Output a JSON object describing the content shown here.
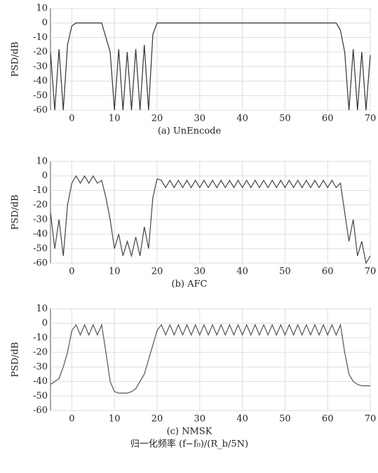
{
  "chart_data": [
    {
      "type": "line",
      "title": "(a) UnEncode",
      "ylabel": "PSD/dB",
      "color": "#333333",
      "grid": true,
      "xlim": [
        -5,
        70
      ],
      "ylim": [
        -60,
        10
      ],
      "xticks": [
        0,
        10,
        20,
        30,
        40,
        50,
        60,
        70
      ],
      "yticks": [
        10,
        0,
        -10,
        -20,
        -30,
        -40,
        -50,
        -60
      ],
      "x": [
        -5,
        -4,
        -3,
        -2,
        -1,
        0,
        1,
        2,
        3,
        4,
        5,
        6,
        7,
        8,
        9,
        10,
        11,
        12,
        13,
        14,
        15,
        16,
        17,
        18,
        19,
        20,
        21,
        22,
        23,
        24,
        25,
        26,
        27,
        28,
        29,
        30,
        31,
        32,
        33,
        34,
        35,
        36,
        37,
        38,
        39,
        40,
        41,
        42,
        43,
        44,
        45,
        46,
        47,
        48,
        49,
        50,
        51,
        52,
        53,
        54,
        55,
        56,
        57,
        58,
        59,
        60,
        61,
        62,
        63,
        64,
        65,
        66,
        67,
        68,
        69,
        70
      ],
      "values": [
        -20,
        -60,
        -18,
        -60,
        -15,
        -2,
        0,
        0,
        0,
        0,
        0,
        0,
        0,
        -10,
        -20,
        -60,
        -18,
        -60,
        -20,
        -60,
        -18,
        -60,
        -15,
        -60,
        -8,
        0,
        0,
        0,
        0,
        0,
        0,
        0,
        0,
        0,
        0,
        0,
        0,
        0,
        0,
        0,
        0,
        0,
        0,
        0,
        0,
        0,
        0,
        0,
        0,
        0,
        0,
        0,
        0,
        0,
        0,
        0,
        0,
        0,
        0,
        0,
        0,
        0,
        0,
        0,
        0,
        0,
        0,
        0,
        -5,
        -20,
        -60,
        -18,
        -60,
        -20,
        -60,
        -22
      ]
    },
    {
      "type": "line",
      "title": "(b) AFC",
      "ylabel": "PSD/dB",
      "color": "#444444",
      "grid": true,
      "xlim": [
        -5,
        70
      ],
      "ylim": [
        -60,
        10
      ],
      "xticks": [
        0,
        10,
        20,
        30,
        40,
        50,
        60,
        70
      ],
      "yticks": [
        10,
        0,
        -10,
        -20,
        -30,
        -40,
        -50,
        -60
      ],
      "x": [
        -5,
        -4,
        -3,
        -2,
        -1,
        0,
        1,
        2,
        3,
        4,
        5,
        6,
        7,
        8,
        9,
        10,
        11,
        12,
        13,
        14,
        15,
        16,
        17,
        18,
        19,
        20,
        21,
        22,
        23,
        24,
        25,
        26,
        27,
        28,
        29,
        30,
        31,
        32,
        33,
        34,
        35,
        36,
        37,
        38,
        39,
        40,
        41,
        42,
        43,
        44,
        45,
        46,
        47,
        48,
        49,
        50,
        51,
        52,
        53,
        54,
        55,
        56,
        57,
        58,
        59,
        60,
        61,
        62,
        63,
        64,
        65,
        66,
        67,
        68,
        69,
        70
      ],
      "values": [
        -25,
        -50,
        -30,
        -55,
        -20,
        -5,
        0,
        -5,
        0,
        -5,
        0,
        -5,
        -3,
        -15,
        -30,
        -50,
        -40,
        -55,
        -45,
        -55,
        -42,
        -55,
        -35,
        -50,
        -15,
        -2,
        -3,
        -8,
        -3,
        -8,
        -3,
        -8,
        -3,
        -8,
        -3,
        -8,
        -3,
        -8,
        -3,
        -8,
        -3,
        -8,
        -3,
        -8,
        -3,
        -8,
        -3,
        -8,
        -3,
        -8,
        -3,
        -8,
        -3,
        -8,
        -3,
        -8,
        -3,
        -8,
        -3,
        -8,
        -3,
        -8,
        -3,
        -8,
        -3,
        -8,
        -3,
        -8,
        -5,
        -25,
        -45,
        -30,
        -55,
        -45,
        -60,
        -55
      ]
    },
    {
      "type": "line",
      "title": "(c) NMSK",
      "ylabel": "PSD/dB",
      "xlabel": "归一化频率 (f−f₀)/(R_b/5N)",
      "color": "#555555",
      "grid": true,
      "xlim": [
        -5,
        70
      ],
      "ylim": [
        -60,
        10
      ],
      "xticks": [
        0,
        10,
        20,
        30,
        40,
        50,
        60,
        70
      ],
      "yticks": [
        10,
        0,
        -10,
        -20,
        -30,
        -40,
        -50,
        -60
      ],
      "x": [
        -5,
        -4,
        -3,
        -2,
        -1,
        0,
        1,
        2,
        3,
        4,
        5,
        6,
        7,
        8,
        9,
        10,
        11,
        12,
        13,
        14,
        15,
        16,
        17,
        18,
        19,
        20,
        21,
        22,
        23,
        24,
        25,
        26,
        27,
        28,
        29,
        30,
        31,
        32,
        33,
        34,
        35,
        36,
        37,
        38,
        39,
        40,
        41,
        42,
        43,
        44,
        45,
        46,
        47,
        48,
        49,
        50,
        51,
        52,
        53,
        54,
        55,
        56,
        57,
        58,
        59,
        60,
        61,
        62,
        63,
        64,
        65,
        66,
        67,
        68,
        69,
        70
      ],
      "values": [
        -42,
        -40,
        -38,
        -30,
        -20,
        -5,
        -1,
        -8,
        -1,
        -8,
        -1,
        -8,
        -1,
        -20,
        -40,
        -47,
        -48,
        -48,
        -48,
        -47,
        -45,
        -40,
        -35,
        -25,
        -15,
        -5,
        -1,
        -8,
        -1,
        -8,
        -1,
        -8,
        -1,
        -8,
        -1,
        -8,
        -1,
        -8,
        -1,
        -8,
        -1,
        -8,
        -1,
        -8,
        -1,
        -8,
        -1,
        -8,
        -1,
        -8,
        -1,
        -8,
        -1,
        -8,
        -1,
        -8,
        -1,
        -8,
        -1,
        -8,
        -1,
        -8,
        -1,
        -8,
        -1,
        -8,
        -1,
        -8,
        -1,
        -20,
        -35,
        -40,
        -42,
        -43,
        -43,
        -43
      ]
    }
  ]
}
